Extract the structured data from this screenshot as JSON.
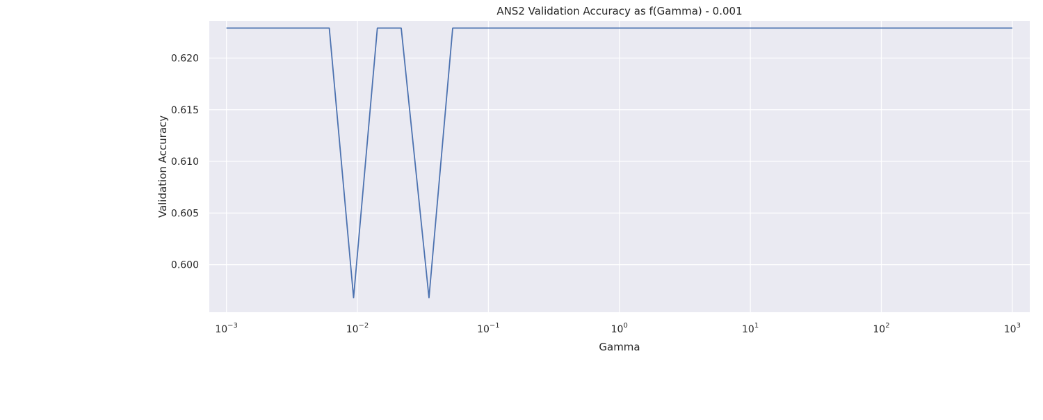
{
  "chart_data": {
    "type": "line",
    "title": "ANS2 Validation Accuracy as f(Gamma) - 0.001",
    "xlabel": "Gamma",
    "ylabel": "Validation Accuracy",
    "x_scale": "log",
    "xlim": [
      0.00074,
      1360
    ],
    "ylim": [
      0.5954,
      0.6236
    ],
    "x_ticks": [
      {
        "value": 0.001,
        "base": "10",
        "exp": "−3"
      },
      {
        "value": 0.01,
        "base": "10",
        "exp": "−2"
      },
      {
        "value": 0.1,
        "base": "10",
        "exp": "−1"
      },
      {
        "value": 1,
        "base": "10",
        "exp": "0"
      },
      {
        "value": 10,
        "base": "10",
        "exp": "1"
      },
      {
        "value": 100,
        "base": "10",
        "exp": "2"
      },
      {
        "value": 1000,
        "base": "10",
        "exp": "3"
      }
    ],
    "y_ticks": [
      {
        "value": 0.6,
        "label": "0.600"
      },
      {
        "value": 0.605,
        "label": "0.605"
      },
      {
        "value": 0.61,
        "label": "0.610"
      },
      {
        "value": 0.615,
        "label": "0.615"
      },
      {
        "value": 0.62,
        "label": "0.620"
      }
    ],
    "grid": true,
    "background": "#EAEAF2",
    "grid_color": "#FFFFFF",
    "series": [
      {
        "color": "#4C72B0",
        "x": [
          0.001,
          0.00152,
          0.00231,
          0.00351,
          0.00534,
          0.0061,
          0.00935,
          0.0142,
          0.0216,
          0.0352,
          0.0534,
          0.0811,
          0.123,
          0.187,
          0.285,
          0.433,
          0.658,
          1,
          1.52,
          2.31,
          3.51,
          5.34,
          8.11,
          12.3,
          18.7,
          28.5,
          43.3,
          65.8,
          100,
          152,
          231,
          351,
          534,
          811,
          1000
        ],
        "y": [
          0.6229,
          0.6229,
          0.6229,
          0.6229,
          0.6229,
          0.6229,
          0.5968,
          0.6229,
          0.6229,
          0.5968,
          0.6229,
          0.6229,
          0.6229,
          0.6229,
          0.6229,
          0.6229,
          0.6229,
          0.6229,
          0.6229,
          0.6229,
          0.6229,
          0.6229,
          0.6229,
          0.6229,
          0.6229,
          0.6229,
          0.6229,
          0.6229,
          0.6229,
          0.6229,
          0.6229,
          0.6229,
          0.6229,
          0.6229,
          0.6229
        ]
      }
    ]
  }
}
